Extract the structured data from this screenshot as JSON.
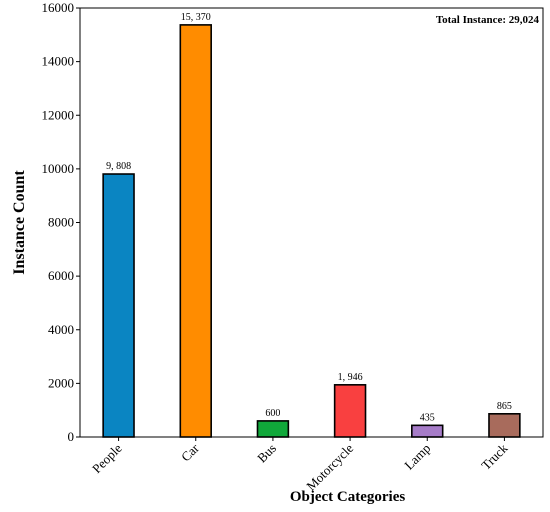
{
  "chart_data": {
    "type": "bar",
    "categories": [
      "People",
      "Car",
      "Bus",
      "Motorcycle",
      "Lamp",
      "Truck"
    ],
    "values": [
      9808,
      15370,
      600,
      1946,
      435,
      865
    ],
    "value_labels": [
      "9, 808",
      "15, 370",
      "600",
      "1, 946",
      "435",
      "865"
    ],
    "colors": [
      "#0a85c2",
      "#ff8c00",
      "#10a83a",
      "#f94040",
      "#a67cc8",
      "#a86b5c"
    ],
    "title": "",
    "xlabel": "Object Categories",
    "ylabel": "Instance Count",
    "ylim": [
      0,
      16000
    ],
    "yticks": [
      0,
      2000,
      4000,
      6000,
      8000,
      10000,
      12000,
      14000,
      16000
    ],
    "grid": false,
    "legend": "none",
    "annotation": "Total Instance:  29,024"
  }
}
